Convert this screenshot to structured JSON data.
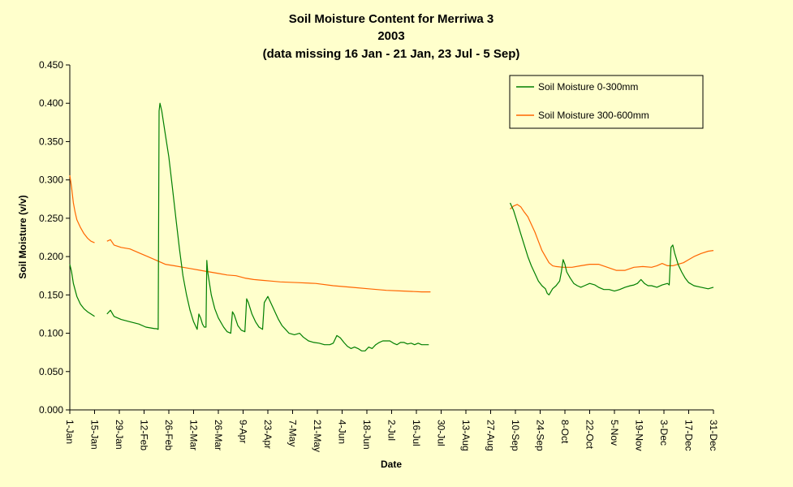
{
  "chart_data": {
    "type": "line",
    "title": "Soil Moisture Content for Merriwa 3",
    "subtitle": "2003",
    "note": "(data missing 16 Jan - 21 Jan, 23 Jul - 5 Sep)",
    "xlabel": "Date",
    "ylabel": "Soil Moisture (v/v)",
    "ylim": [
      0,
      0.45
    ],
    "y_ticks": [
      "0.000",
      "0.050",
      "0.100",
      "0.150",
      "0.200",
      "0.250",
      "0.300",
      "0.350",
      "0.400",
      "0.450"
    ],
    "x_ticks": [
      "1-Jan",
      "15-Jan",
      "29-Jan",
      "12-Feb",
      "26-Feb",
      "12-Mar",
      "26-Mar",
      "9-Apr",
      "23-Apr",
      "7-May",
      "21-May",
      "4-Jun",
      "18-Jun",
      "2-Jul",
      "16-Jul",
      "30-Jul",
      "13-Aug",
      "27-Aug",
      "10-Sep",
      "24-Sep",
      "8-Oct",
      "22-Oct",
      "5-Nov",
      "19-Nov",
      "3-Dec",
      "17-Dec",
      "31-Dec"
    ],
    "x_tick_days": [
      1,
      15,
      29,
      43,
      57,
      71,
      85,
      99,
      113,
      127,
      141,
      155,
      169,
      183,
      197,
      211,
      225,
      239,
      253,
      267,
      281,
      295,
      309,
      323,
      337,
      351,
      365
    ],
    "grid": false,
    "legend_position": "top-right",
    "colors": {
      "plot_background": "#ffffcc",
      "page_background": "#ffffcc"
    },
    "series": [
      {
        "name": "Soil Moisture 0-300mm",
        "color": "#007f00",
        "segments": [
          [
            [
              1,
              0.19
            ],
            [
              2,
              0.18
            ],
            [
              3,
              0.165
            ],
            [
              5,
              0.148
            ],
            [
              7,
              0.138
            ],
            [
              9,
              0.132
            ],
            [
              11,
              0.128
            ],
            [
              13,
              0.125
            ],
            [
              15,
              0.122
            ]
          ],
          [
            [
              22,
              0.125
            ],
            [
              24,
              0.13
            ],
            [
              26,
              0.122
            ],
            [
              30,
              0.118
            ],
            [
              35,
              0.115
            ],
            [
              40,
              0.112
            ],
            [
              44,
              0.108
            ],
            [
              49,
              0.106
            ],
            [
              50,
              0.106
            ],
            [
              51,
              0.105
            ],
            [
              51.5,
              0.39
            ],
            [
              52,
              0.4
            ],
            [
              53,
              0.39
            ],
            [
              55,
              0.36
            ],
            [
              57,
              0.33
            ],
            [
              59,
              0.29
            ],
            [
              61,
              0.25
            ],
            [
              63,
              0.21
            ],
            [
              65,
              0.175
            ],
            [
              67,
              0.15
            ],
            [
              69,
              0.13
            ],
            [
              71,
              0.115
            ],
            [
              73,
              0.105
            ],
            [
              74,
              0.125
            ],
            [
              75,
              0.12
            ],
            [
              76,
              0.112
            ],
            [
              77,
              0.108
            ],
            [
              78,
              0.108
            ],
            [
              78.5,
              0.195
            ],
            [
              79,
              0.18
            ],
            [
              81,
              0.15
            ],
            [
              83,
              0.132
            ],
            [
              85,
              0.12
            ],
            [
              88,
              0.108
            ],
            [
              90,
              0.102
            ],
            [
              92,
              0.1
            ],
            [
              93,
              0.128
            ],
            [
              94,
              0.124
            ],
            [
              96,
              0.11
            ],
            [
              98,
              0.104
            ],
            [
              100,
              0.102
            ],
            [
              101,
              0.145
            ],
            [
              102,
              0.14
            ],
            [
              104,
              0.125
            ],
            [
              106,
              0.115
            ],
            [
              108,
              0.108
            ],
            [
              110,
              0.105
            ],
            [
              111,
              0.14
            ],
            [
              113,
              0.148
            ],
            [
              115,
              0.138
            ],
            [
              117,
              0.128
            ],
            [
              119,
              0.118
            ],
            [
              121,
              0.11
            ],
            [
              123,
              0.105
            ],
            [
              125,
              0.1
            ],
            [
              128,
              0.098
            ],
            [
              131,
              0.1
            ],
            [
              133,
              0.095
            ],
            [
              136,
              0.09
            ],
            [
              139,
              0.088
            ],
            [
              142,
              0.087
            ],
            [
              145,
              0.085
            ],
            [
              148,
              0.085
            ],
            [
              150,
              0.087
            ],
            [
              152,
              0.097
            ],
            [
              154,
              0.094
            ],
            [
              156,
              0.088
            ],
            [
              158,
              0.083
            ],
            [
              160,
              0.08
            ],
            [
              162,
              0.082
            ],
            [
              164,
              0.08
            ],
            [
              166,
              0.077
            ],
            [
              168,
              0.077
            ],
            [
              170,
              0.082
            ],
            [
              172,
              0.08
            ],
            [
              174,
              0.085
            ],
            [
              176,
              0.088
            ],
            [
              178,
              0.09
            ],
            [
              180,
              0.09
            ],
            [
              182,
              0.09
            ],
            [
              184,
              0.087
            ],
            [
              186,
              0.085
            ],
            [
              188,
              0.088
            ],
            [
              190,
              0.088
            ],
            [
              192,
              0.086
            ],
            [
              194,
              0.087
            ],
            [
              196,
              0.085
            ],
            [
              198,
              0.087
            ],
            [
              200,
              0.085
            ],
            [
              202,
              0.085
            ],
            [
              204,
              0.085
            ]
          ]
        ]
      },
      {
        "name": "Soil Moisture 300-600mm",
        "color": "#ff6600",
        "segments": [
          [
            [
              1,
              0.306
            ],
            [
              2,
              0.29
            ],
            [
              3,
              0.27
            ],
            [
              4,
              0.258
            ],
            [
              5,
              0.248
            ],
            [
              7,
              0.238
            ],
            [
              9,
              0.23
            ],
            [
              11,
              0.224
            ],
            [
              13,
              0.22
            ],
            [
              15,
              0.218
            ]
          ],
          [
            [
              22,
              0.22
            ],
            [
              24,
              0.222
            ],
            [
              26,
              0.215
            ],
            [
              30,
              0.212
            ],
            [
              35,
              0.21
            ],
            [
              40,
              0.205
            ],
            [
              45,
              0.2
            ],
            [
              50,
              0.195
            ],
            [
              55,
              0.19
            ],
            [
              60,
              0.188
            ],
            [
              65,
              0.186
            ],
            [
              70,
              0.184
            ],
            [
              75,
              0.182
            ],
            [
              80,
              0.18
            ],
            [
              85,
              0.178
            ],
            [
              90,
              0.176
            ],
            [
              95,
              0.175
            ],
            [
              100,
              0.172
            ],
            [
              105,
              0.17
            ],
            [
              110,
              0.169
            ],
            [
              115,
              0.168
            ],
            [
              120,
              0.167
            ],
            [
              130,
              0.166
            ],
            [
              140,
              0.165
            ],
            [
              150,
              0.162
            ],
            [
              160,
              0.16
            ],
            [
              170,
              0.158
            ],
            [
              180,
              0.156
            ],
            [
              190,
              0.155
            ],
            [
              200,
              0.154
            ],
            [
              205,
              0.154
            ]
          ],
          [
            [
              250,
              0.262
            ],
            [
              252,
              0.266
            ],
            [
              254,
              0.268
            ],
            [
              256,
              0.265
            ],
            [
              258,
              0.258
            ],
            [
              260,
              0.252
            ],
            [
              262,
              0.242
            ],
            [
              264,
              0.232
            ],
            [
              266,
              0.22
            ],
            [
              268,
              0.208
            ],
            [
              270,
              0.2
            ],
            [
              272,
              0.192
            ],
            [
              274,
              0.188
            ],
            [
              276,
              0.187
            ],
            [
              280,
              0.186
            ],
            [
              285,
              0.186
            ],
            [
              290,
              0.188
            ],
            [
              295,
              0.19
            ],
            [
              300,
              0.19
            ],
            [
              305,
              0.186
            ],
            [
              310,
              0.182
            ],
            [
              315,
              0.182
            ],
            [
              320,
              0.186
            ],
            [
              325,
              0.187
            ],
            [
              330,
              0.186
            ],
            [
              333,
              0.188
            ],
            [
              336,
              0.191
            ],
            [
              339,
              0.188
            ],
            [
              342,
              0.188
            ],
            [
              345,
              0.19
            ],
            [
              348,
              0.192
            ],
            [
              351,
              0.196
            ],
            [
              354,
              0.2
            ],
            [
              358,
              0.204
            ],
            [
              362,
              0.207
            ],
            [
              365,
              0.208
            ]
          ]
        ]
      }
    ],
    "extra_segment_0_300": [
      [
        250,
        0.27
      ],
      [
        252,
        0.26
      ],
      [
        254,
        0.245
      ],
      [
        256,
        0.23
      ],
      [
        258,
        0.215
      ],
      [
        260,
        0.2
      ],
      [
        262,
        0.188
      ],
      [
        264,
        0.178
      ],
      [
        266,
        0.168
      ],
      [
        268,
        0.162
      ],
      [
        270,
        0.158
      ],
      [
        271,
        0.152
      ],
      [
        272,
        0.15
      ],
      [
        274,
        0.158
      ],
      [
        276,
        0.162
      ],
      [
        278,
        0.168
      ],
      [
        279,
        0.18
      ],
      [
        280,
        0.196
      ],
      [
        281,
        0.19
      ],
      [
        282,
        0.18
      ],
      [
        284,
        0.172
      ],
      [
        286,
        0.165
      ],
      [
        288,
        0.162
      ],
      [
        290,
        0.16
      ],
      [
        292,
        0.162
      ],
      [
        295,
        0.165
      ],
      [
        298,
        0.163
      ],
      [
        300,
        0.16
      ],
      [
        303,
        0.157
      ],
      [
        306,
        0.157
      ],
      [
        309,
        0.155
      ],
      [
        312,
        0.157
      ],
      [
        315,
        0.16
      ],
      [
        318,
        0.162
      ],
      [
        320,
        0.163
      ],
      [
        322,
        0.165
      ],
      [
        324,
        0.17
      ],
      [
        326,
        0.165
      ],
      [
        328,
        0.162
      ],
      [
        330,
        0.162
      ],
      [
        333,
        0.16
      ],
      [
        336,
        0.163
      ],
      [
        339,
        0.165
      ],
      [
        340,
        0.163
      ],
      [
        341,
        0.212
      ],
      [
        342,
        0.215
      ],
      [
        343,
        0.205
      ],
      [
        345,
        0.19
      ],
      [
        347,
        0.18
      ],
      [
        349,
        0.172
      ],
      [
        351,
        0.166
      ],
      [
        354,
        0.162
      ],
      [
        358,
        0.16
      ],
      [
        362,
        0.158
      ],
      [
        365,
        0.16
      ]
    ]
  }
}
